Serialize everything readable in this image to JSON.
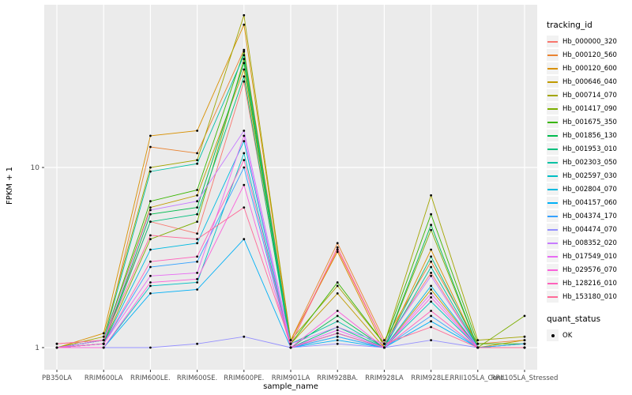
{
  "chart_data": {
    "type": "line",
    "title": "",
    "xlabel": "sample_name",
    "ylabel": "FPKM + 1",
    "y_scale": "log10",
    "y_ticks": [
      1,
      10
    ],
    "ylim": [
      0.75,
      80
    ],
    "legend_position": "right",
    "grid": true,
    "categories": [
      "PB350LA",
      "RRIM600LA",
      "RRIM600LE.",
      "RRIM600SE.",
      "RRIM600PE.",
      "RRIM901LA",
      "RRIM928BA.",
      "RRIM928LA",
      "RRIM928LE.",
      "RRII105LA_Cont.",
      "RRII105LA_Stressed"
    ],
    "series": [
      {
        "name": "Hb_000000_320",
        "color": "#F8766D",
        "values": [
          1.05,
          1.1,
          5.0,
          4.3,
          30,
          1.05,
          3.5,
          1.05,
          2.6,
          1.0,
          1.0
        ]
      },
      {
        "name": "Hb_000120_560",
        "color": "#EA8331",
        "values": [
          1.0,
          1.05,
          13,
          12,
          45,
          1.1,
          3.8,
          1.1,
          3.0,
          1.05,
          1.1
        ]
      },
      {
        "name": "Hb_000120_600",
        "color": "#D89000",
        "values": [
          1.0,
          1.2,
          15,
          16,
          62,
          1.1,
          3.4,
          1.0,
          3.5,
          1.0,
          1.05
        ]
      },
      {
        "name": "Hb_000646_040",
        "color": "#C09B00",
        "values": [
          1.0,
          1.1,
          6.0,
          7.0,
          35,
          1.05,
          2.0,
          1.0,
          2.1,
          1.0,
          1.1
        ]
      },
      {
        "name": "Hb_000714_070",
        "color": "#A3A500",
        "values": [
          1.0,
          1.15,
          10,
          11,
          70,
          1.1,
          2.2,
          1.05,
          7.0,
          1.1,
          1.15
        ]
      },
      {
        "name": "Hb_001417_090",
        "color": "#7CAE00",
        "values": [
          1.0,
          1.05,
          4.0,
          5.0,
          40,
          1.0,
          1.2,
          1.0,
          4.5,
          1.0,
          1.5
        ]
      },
      {
        "name": "Hb_001675_350",
        "color": "#39B600",
        "values": [
          1.0,
          1.1,
          6.5,
          7.5,
          44,
          1.05,
          2.3,
          1.05,
          5.5,
          1.05,
          1.05
        ]
      },
      {
        "name": "Hb_001856_130",
        "color": "#00BB4E",
        "values": [
          1.0,
          1.05,
          5.5,
          6.0,
          38,
          1.0,
          1.5,
          1.0,
          4.8,
          1.0,
          1.0
        ]
      },
      {
        "name": "Hb_001953_010",
        "color": "#00BF7D",
        "values": [
          1.0,
          1.05,
          5.0,
          5.5,
          32,
          1.0,
          1.3,
          1.0,
          3.2,
          1.0,
          1.0
        ]
      },
      {
        "name": "Hb_002303_050",
        "color": "#00C1A3",
        "values": [
          1.0,
          1.1,
          9.5,
          10.5,
          42,
          1.05,
          1.4,
          1.0,
          2.8,
          1.0,
          1.05
        ]
      },
      {
        "name": "Hb_002597_030",
        "color": "#00BFC4",
        "values": [
          1.0,
          1.0,
          2.2,
          2.3,
          12,
          1.0,
          1.15,
          1.0,
          1.8,
          1.0,
          1.0
        ]
      },
      {
        "name": "Hb_002804_070",
        "color": "#00BAE0",
        "values": [
          1.0,
          1.05,
          3.5,
          3.8,
          14,
          1.0,
          1.2,
          1.0,
          2.2,
          1.0,
          1.0
        ]
      },
      {
        "name": "Hb_004157_060",
        "color": "#00B0F6",
        "values": [
          1.0,
          1.0,
          2.0,
          2.1,
          4.0,
          1.0,
          1.1,
          1.0,
          1.4,
          1.0,
          1.0
        ]
      },
      {
        "name": "Hb_004374_170",
        "color": "#35A2FF",
        "values": [
          1.0,
          1.05,
          2.8,
          3.0,
          10,
          1.0,
          1.15,
          1.0,
          1.5,
          1.0,
          1.05
        ]
      },
      {
        "name": "Hb_004474_070",
        "color": "#9590FF",
        "values": [
          1.0,
          1.0,
          1.0,
          1.05,
          1.15,
          1.0,
          1.05,
          1.0,
          1.1,
          1.0,
          1.0
        ]
      },
      {
        "name": "Hb_008352_020",
        "color": "#C77CFF",
        "values": [
          1.0,
          1.1,
          5.8,
          6.5,
          16,
          1.05,
          1.3,
          1.05,
          2.5,
          1.0,
          1.0
        ]
      },
      {
        "name": "Hb_017549_010",
        "color": "#E76BF3",
        "values": [
          1.0,
          1.05,
          2.5,
          2.6,
          15,
          1.0,
          1.25,
          1.0,
          2.0,
          1.0,
          1.0
        ]
      },
      {
        "name": "Hb_029576_070",
        "color": "#FA62DB",
        "values": [
          1.0,
          1.0,
          2.3,
          2.4,
          8.0,
          1.0,
          1.6,
          1.0,
          1.9,
          1.0,
          1.0
        ]
      },
      {
        "name": "Hb_128216_010",
        "color": "#FF62BC",
        "values": [
          1.0,
          1.05,
          3.0,
          3.2,
          11,
          1.0,
          1.2,
          1.0,
          1.6,
          1.0,
          1.0
        ]
      },
      {
        "name": "Hb_153180_010",
        "color": "#FF6A98",
        "values": [
          1.05,
          1.1,
          4.2,
          4.0,
          6.0,
          1.05,
          3.6,
          1.05,
          1.3,
          1.0,
          1.0
        ]
      }
    ],
    "colors": {
      "panel_bg": "#EBEBEB",
      "grid": "#FFFFFF",
      "point": "#000000",
      "tick_label": "#4D4D4D",
      "axis_title": "#000000"
    }
  },
  "legend": {
    "tracking_title": "tracking_id",
    "quant_title": "quant_status",
    "quant_items": [
      {
        "label": "OK"
      }
    ]
  }
}
